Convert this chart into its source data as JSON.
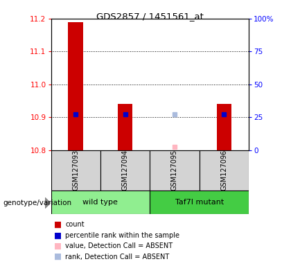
{
  "title": "GDS2857 / 1451561_at",
  "samples": [
    "GSM127093",
    "GSM127094",
    "GSM127095",
    "GSM127096"
  ],
  "genotype_label": "genotype/variation",
  "ylim_left": [
    10.8,
    11.2
  ],
  "ylim_right": [
    0,
    100
  ],
  "yticks_left": [
    10.8,
    10.9,
    11.0,
    11.1,
    11.2
  ],
  "yticks_right": [
    0,
    25,
    50,
    75,
    100
  ],
  "ytick_labels_right": [
    "0",
    "25",
    "50",
    "75",
    "100%"
  ],
  "red_bars": {
    "GSM127093": [
      10.8,
      11.19
    ],
    "GSM127094": [
      10.8,
      10.94
    ],
    "GSM127095": [
      10.8,
      10.8
    ],
    "GSM127096": [
      10.8,
      10.94
    ]
  },
  "blue_squares": {
    "GSM127093": 10.91,
    "GSM127094": 10.91,
    "GSM127095": null,
    "GSM127096": 10.91
  },
  "pink_squares": {
    "GSM127093": null,
    "GSM127094": null,
    "GSM127095": 10.81,
    "GSM127096": null
  },
  "light_blue_squares": {
    "GSM127093": null,
    "GSM127094": null,
    "GSM127095": 10.91,
    "GSM127096": null
  },
  "legend": [
    {
      "color": "#CC0000",
      "label": "count"
    },
    {
      "color": "#0000CC",
      "label": "percentile rank within the sample"
    },
    {
      "color": "#FFB6C1",
      "label": "value, Detection Call = ABSENT"
    },
    {
      "color": "#AABBDD",
      "label": "rank, Detection Call = ABSENT"
    }
  ],
  "group_bounds": [
    [
      0,
      2,
      "wild type",
      "#90EE90"
    ],
    [
      2,
      4,
      "Taf7l mutant",
      "#44CC44"
    ]
  ],
  "sample_box_color": "#d3d3d3",
  "bar_width": 0.3
}
